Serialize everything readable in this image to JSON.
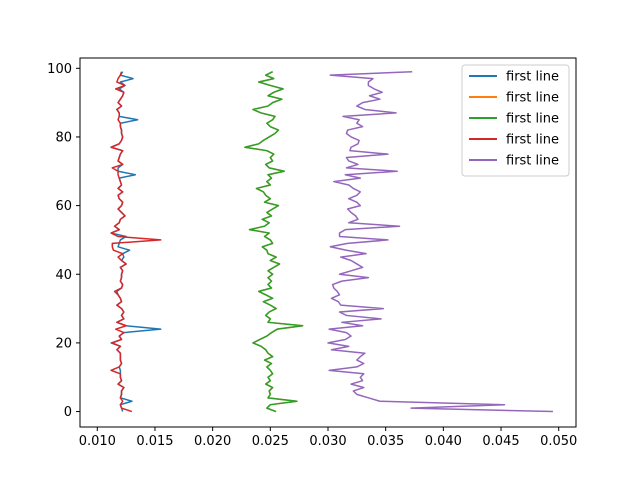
{
  "chart_data": {
    "type": "line",
    "title": "",
    "xlabel": "",
    "ylabel": "",
    "xlim": [
      0.0085,
      0.0515
    ],
    "ylim": [
      -4.5,
      103
    ],
    "xticks": [
      0.01,
      0.015,
      0.02,
      0.025,
      0.03,
      0.035,
      0.04,
      0.045,
      0.05
    ],
    "xtick_labels": [
      "0.010",
      "0.015",
      "0.020",
      "0.025",
      "0.030",
      "0.035",
      "0.040",
      "0.045",
      "0.050"
    ],
    "yticks": [
      0,
      20,
      40,
      60,
      80,
      100
    ],
    "ytick_labels": [
      "0",
      "20",
      "40",
      "60",
      "80",
      "100"
    ],
    "grid": false,
    "legend_position": "top-right",
    "series": [
      {
        "name": "first line",
        "color": "#1f77b4",
        "x": [
          0.0122,
          0.0121,
          0.012,
          0.013,
          0.012,
          0.0121,
          0.0121,
          0.0123,
          0.0118,
          0.0121,
          0.012,
          0.012,
          0.012,
          0.0119,
          0.0121,
          0.012,
          0.012,
          0.012,
          0.0117,
          0.012,
          0.0112,
          0.0121,
          0.0119,
          0.0123,
          0.0155,
          0.0125,
          0.0117,
          0.0123,
          0.0121,
          0.0123,
          0.0121,
          0.0117,
          0.0121,
          0.012,
          0.0118,
          0.0117,
          0.0121,
          0.0122,
          0.012,
          0.0121,
          0.0121,
          0.0122,
          0.012,
          0.0125,
          0.0121,
          0.0123,
          0.0122,
          0.0128,
          0.0118,
          0.0119,
          0.012,
          0.0125,
          0.0112,
          0.0119,
          0.0115,
          0.0119,
          0.012,
          0.0124,
          0.0121,
          0.0118,
          0.0121,
          0.0122,
          0.0119,
          0.0118,
          0.0122,
          0.0118,
          0.0121,
          0.012,
          0.0119,
          0.0133,
          0.0118,
          0.0118,
          0.0122,
          0.0118,
          0.0119,
          0.012,
          0.0122,
          0.0112,
          0.0119,
          0.0121,
          0.0122,
          0.0121,
          0.0121,
          0.012,
          0.012,
          0.0135,
          0.0119,
          0.0119,
          0.0117,
          0.0121,
          0.0118,
          0.012,
          0.0122,
          0.0123,
          0.0119,
          0.0124,
          0.012,
          0.0131,
          0.012,
          0.0122
        ],
        "y": [
          0,
          1,
          2,
          3,
          4,
          5,
          6,
          7,
          8,
          9,
          10,
          11,
          12,
          13,
          14,
          15,
          16,
          17,
          18,
          19,
          20,
          21,
          22,
          23,
          24,
          25,
          26,
          27,
          28,
          29,
          30,
          31,
          32,
          33,
          34,
          35,
          36,
          37,
          38,
          39,
          40,
          41,
          42,
          43,
          44,
          45,
          46,
          47,
          48,
          49,
          50,
          51,
          52,
          53,
          54,
          55,
          56,
          57,
          58,
          59,
          60,
          61,
          62,
          63,
          64,
          65,
          66,
          67,
          68,
          69,
          70,
          71,
          72,
          73,
          74,
          75,
          76,
          77,
          78,
          79,
          80,
          81,
          82,
          83,
          84,
          85,
          86,
          87,
          88,
          89,
          90,
          91,
          92,
          93,
          94,
          95,
          96,
          97,
          98,
          99
        ]
      },
      {
        "name": "first line",
        "color": "#ff7f0e",
        "x": [
          0.0255,
          0.0247,
          0.025,
          0.0273,
          0.0248,
          0.025,
          0.0249,
          0.0252,
          0.0246,
          0.025,
          0.0248,
          0.0252,
          0.025,
          0.0247,
          0.0251,
          0.0245,
          0.0252,
          0.0248,
          0.0246,
          0.0242,
          0.0235,
          0.0241,
          0.0247,
          0.0251,
          0.0256,
          0.0278,
          0.0248,
          0.025,
          0.0246,
          0.0249,
          0.0255,
          0.025,
          0.0244,
          0.0252,
          0.0246,
          0.024,
          0.0251,
          0.0248,
          0.0251,
          0.0248,
          0.0252,
          0.0248,
          0.0253,
          0.0258,
          0.025,
          0.0255,
          0.0248,
          0.0247,
          0.0243,
          0.0252,
          0.025,
          0.0245,
          0.0249,
          0.0232,
          0.0245,
          0.0249,
          0.0243,
          0.0251,
          0.0247,
          0.0252,
          0.0257,
          0.0245,
          0.025,
          0.0246,
          0.0244,
          0.0238,
          0.025,
          0.0247,
          0.0251,
          0.0248,
          0.0262,
          0.0249,
          0.0246,
          0.0252,
          0.025,
          0.0253,
          0.0247,
          0.0228,
          0.024,
          0.0244,
          0.0249,
          0.0254,
          0.0257,
          0.025,
          0.0247,
          0.0252,
          0.0254,
          0.0242,
          0.0235,
          0.0248,
          0.0252,
          0.026,
          0.0248,
          0.0253,
          0.0261,
          0.025,
          0.024,
          0.0253,
          0.0246,
          0.0252
        ],
        "y": [
          0,
          1,
          2,
          3,
          4,
          5,
          6,
          7,
          8,
          9,
          10,
          11,
          12,
          13,
          14,
          15,
          16,
          17,
          18,
          19,
          20,
          21,
          22,
          23,
          24,
          25,
          26,
          27,
          28,
          29,
          30,
          31,
          32,
          33,
          34,
          35,
          36,
          37,
          38,
          39,
          40,
          41,
          42,
          43,
          44,
          45,
          46,
          47,
          48,
          49,
          50,
          51,
          52,
          53,
          54,
          55,
          56,
          57,
          58,
          59,
          60,
          61,
          62,
          63,
          64,
          65,
          66,
          67,
          68,
          69,
          70,
          71,
          72,
          73,
          74,
          75,
          76,
          77,
          78,
          79,
          80,
          81,
          82,
          83,
          84,
          85,
          86,
          87,
          88,
          89,
          90,
          91,
          92,
          93,
          94,
          95,
          96,
          97,
          98,
          99
        ]
      },
      {
        "name": "first line",
        "color": "#2ca02c",
        "x": [
          0.0255,
          0.0247,
          0.025,
          0.0273,
          0.0248,
          0.025,
          0.0249,
          0.0252,
          0.0246,
          0.025,
          0.0248,
          0.0252,
          0.025,
          0.0247,
          0.0251,
          0.0245,
          0.0252,
          0.0248,
          0.0246,
          0.0242,
          0.0235,
          0.0241,
          0.0247,
          0.0251,
          0.0256,
          0.0278,
          0.0248,
          0.025,
          0.0246,
          0.0249,
          0.0255,
          0.025,
          0.0244,
          0.0252,
          0.0246,
          0.024,
          0.0251,
          0.0248,
          0.0251,
          0.0248,
          0.0252,
          0.0248,
          0.0253,
          0.0258,
          0.025,
          0.0255,
          0.0248,
          0.0247,
          0.0243,
          0.0252,
          0.025,
          0.0245,
          0.0249,
          0.0232,
          0.0245,
          0.0249,
          0.0243,
          0.0251,
          0.0247,
          0.0252,
          0.0257,
          0.0245,
          0.025,
          0.0246,
          0.0244,
          0.0238,
          0.025,
          0.0247,
          0.0251,
          0.0248,
          0.0262,
          0.0249,
          0.0246,
          0.0252,
          0.025,
          0.0253,
          0.0247,
          0.0228,
          0.024,
          0.0244,
          0.0249,
          0.0254,
          0.0257,
          0.025,
          0.0247,
          0.0252,
          0.0254,
          0.0242,
          0.0235,
          0.0248,
          0.0252,
          0.026,
          0.0248,
          0.0253,
          0.0261,
          0.025,
          0.024,
          0.0253,
          0.0246,
          0.0252
        ],
        "y": [
          0,
          1,
          2,
          3,
          4,
          5,
          6,
          7,
          8,
          9,
          10,
          11,
          12,
          13,
          14,
          15,
          16,
          17,
          18,
          19,
          20,
          21,
          22,
          23,
          24,
          25,
          26,
          27,
          28,
          29,
          30,
          31,
          32,
          33,
          34,
          35,
          36,
          37,
          38,
          39,
          40,
          41,
          42,
          43,
          44,
          45,
          46,
          47,
          48,
          49,
          50,
          51,
          52,
          53,
          54,
          55,
          56,
          57,
          58,
          59,
          60,
          61,
          62,
          63,
          64,
          65,
          66,
          67,
          68,
          69,
          70,
          71,
          72,
          73,
          74,
          75,
          76,
          77,
          78,
          79,
          80,
          81,
          82,
          83,
          84,
          85,
          86,
          87,
          88,
          89,
          90,
          91,
          92,
          93,
          94,
          95,
          96,
          97,
          98,
          99
        ]
      },
      {
        "name": "first line",
        "color": "#d62728",
        "x": [
          0.013,
          0.0121,
          0.012,
          0.0122,
          0.012,
          0.0121,
          0.0121,
          0.0123,
          0.0118,
          0.0121,
          0.012,
          0.012,
          0.0112,
          0.0119,
          0.0121,
          0.012,
          0.012,
          0.012,
          0.0117,
          0.012,
          0.0113,
          0.0121,
          0.0119,
          0.0123,
          0.0116,
          0.0125,
          0.0117,
          0.0123,
          0.0121,
          0.0123,
          0.0121,
          0.0117,
          0.0121,
          0.012,
          0.0118,
          0.0115,
          0.0121,
          0.0122,
          0.012,
          0.0121,
          0.0121,
          0.0122,
          0.012,
          0.0125,
          0.0121,
          0.0118,
          0.0122,
          0.0114,
          0.0113,
          0.0113,
          0.0155,
          0.0118,
          0.0112,
          0.0119,
          0.0115,
          0.0119,
          0.012,
          0.0124,
          0.0121,
          0.0118,
          0.0121,
          0.0122,
          0.0119,
          0.0118,
          0.0122,
          0.0118,
          0.0121,
          0.012,
          0.0119,
          0.0118,
          0.0118,
          0.0113,
          0.0122,
          0.0118,
          0.0119,
          0.012,
          0.0122,
          0.0112,
          0.0119,
          0.0121,
          0.0122,
          0.0121,
          0.0121,
          0.012,
          0.012,
          0.0118,
          0.0119,
          0.0119,
          0.0117,
          0.0121,
          0.0118,
          0.012,
          0.0122,
          0.0123,
          0.0116,
          0.0124,
          0.0117,
          0.0118,
          0.012,
          0.0121
        ],
        "y": [
          0,
          1,
          2,
          3,
          4,
          5,
          6,
          7,
          8,
          9,
          10,
          11,
          12,
          13,
          14,
          15,
          16,
          17,
          18,
          19,
          20,
          21,
          22,
          23,
          24,
          25,
          26,
          27,
          28,
          29,
          30,
          31,
          32,
          33,
          34,
          35,
          36,
          37,
          38,
          39,
          40,
          41,
          42,
          43,
          44,
          45,
          46,
          47,
          48,
          49,
          50,
          51,
          52,
          53,
          54,
          55,
          56,
          57,
          58,
          59,
          60,
          61,
          62,
          63,
          64,
          65,
          66,
          67,
          68,
          69,
          70,
          71,
          72,
          73,
          74,
          75,
          76,
          77,
          78,
          79,
          80,
          81,
          82,
          83,
          84,
          85,
          86,
          87,
          88,
          89,
          90,
          91,
          92,
          93,
          94,
          95,
          96,
          97,
          98,
          99
        ]
      },
      {
        "name": "first line",
        "color": "#9467bd",
        "x": [
          0.0495,
          0.0372,
          0.0453,
          0.0345,
          0.0335,
          0.0325,
          0.0322,
          0.0331,
          0.032,
          0.033,
          0.0328,
          0.0331,
          0.0301,
          0.0325,
          0.0331,
          0.0325,
          0.0328,
          0.0332,
          0.0303,
          0.0318,
          0.03,
          0.0315,
          0.032,
          0.0316,
          0.0301,
          0.033,
          0.0312,
          0.0346,
          0.0316,
          0.031,
          0.0348,
          0.0311,
          0.0309,
          0.0303,
          0.031,
          0.0308,
          0.0305,
          0.0304,
          0.0312,
          0.0335,
          0.031,
          0.032,
          0.033,
          0.0325,
          0.032,
          0.0311,
          0.0333,
          0.0316,
          0.0302,
          0.0317,
          0.0352,
          0.031,
          0.031,
          0.0315,
          0.0362,
          0.0318,
          0.0326,
          0.0324,
          0.032,
          0.0317,
          0.0328,
          0.0325,
          0.0318,
          0.0325,
          0.0328,
          0.0322,
          0.0318,
          0.0305,
          0.0328,
          0.0315,
          0.036,
          0.0316,
          0.0326,
          0.0318,
          0.0316,
          0.0352,
          0.0319,
          0.032,
          0.0326,
          0.0327,
          0.032,
          0.0316,
          0.0317,
          0.033,
          0.0325,
          0.0327,
          0.0313,
          0.0359,
          0.0332,
          0.0325,
          0.033,
          0.0345,
          0.0336,
          0.0347,
          0.034,
          0.0335,
          0.0335,
          0.0339,
          0.0302,
          0.0373
        ],
        "y": [
          0,
          1,
          2,
          3,
          4,
          5,
          6,
          7,
          8,
          9,
          10,
          11,
          12,
          13,
          14,
          15,
          16,
          17,
          18,
          19,
          20,
          21,
          22,
          23,
          24,
          25,
          26,
          27,
          28,
          29,
          30,
          31,
          32,
          33,
          34,
          35,
          36,
          37,
          38,
          39,
          40,
          41,
          42,
          43,
          44,
          45,
          46,
          47,
          48,
          49,
          50,
          51,
          52,
          53,
          54,
          55,
          56,
          57,
          58,
          59,
          60,
          61,
          62,
          63,
          64,
          65,
          66,
          67,
          68,
          69,
          70,
          71,
          72,
          73,
          74,
          75,
          76,
          77,
          78,
          79,
          80,
          81,
          82,
          83,
          84,
          85,
          86,
          87,
          88,
          89,
          90,
          91,
          92,
          93,
          94,
          95,
          96,
          97,
          98,
          99
        ]
      }
    ]
  }
}
